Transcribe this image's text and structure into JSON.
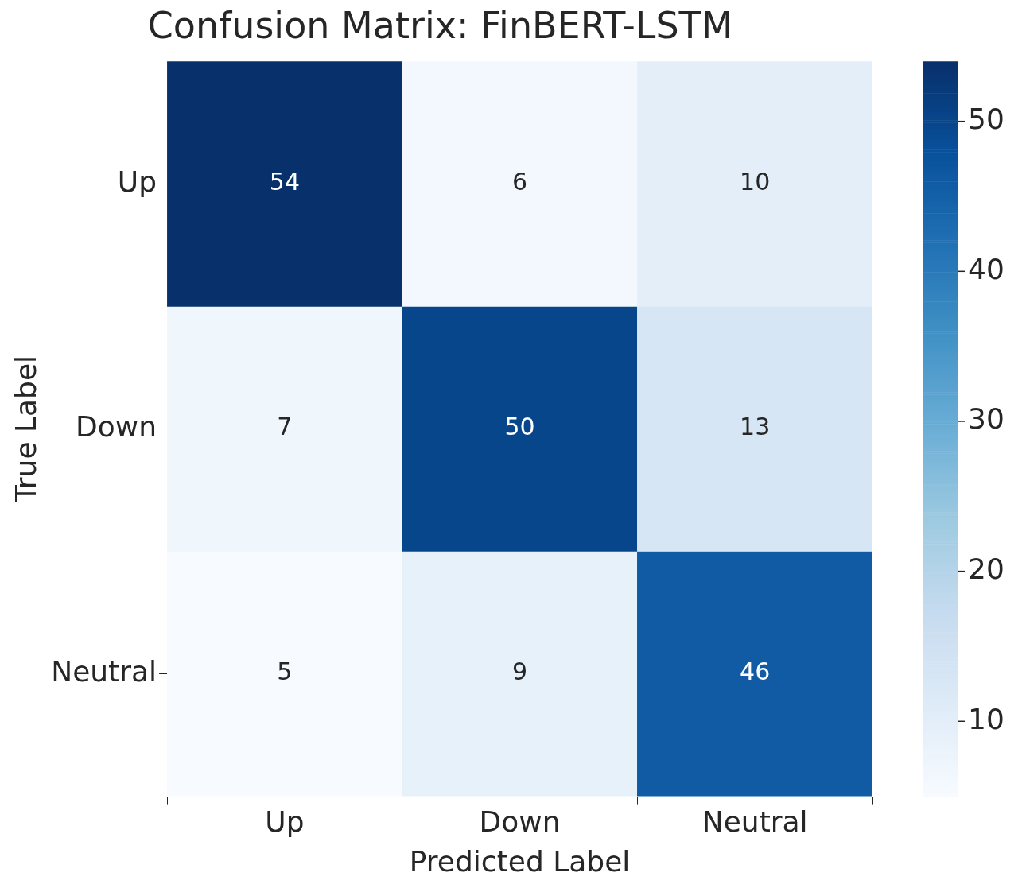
{
  "chart_data": {
    "type": "heatmap",
    "title": "Confusion Matrix: FinBERT-LSTM",
    "xlabel": "Predicted Label",
    "ylabel": "True Label",
    "categories": [
      "Up",
      "Down",
      "Neutral"
    ],
    "y_categories": [
      "Up",
      "Down",
      "Neutral"
    ],
    "cells": [
      [
        54,
        6,
        10
      ],
      [
        7,
        50,
        13
      ],
      [
        5,
        9,
        46
      ]
    ],
    "clim": [
      5,
      54
    ],
    "cticks": [
      10,
      20,
      30,
      40,
      50
    ],
    "data_labels": true
  }
}
